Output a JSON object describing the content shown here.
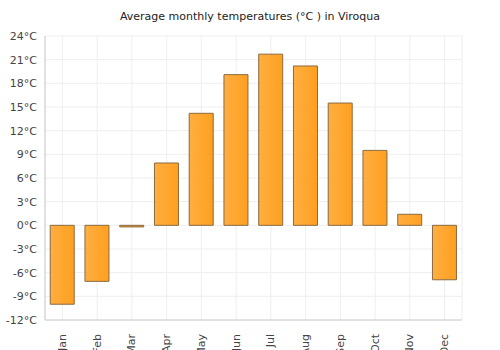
{
  "chart_data": {
    "type": "bar",
    "title": "Average monthly temperatures (°C ) in Viroqua",
    "categories": [
      "Jan",
      "Feb",
      "Mar",
      "Apr",
      "May",
      "Jun",
      "Jul",
      "Aug",
      "Sep",
      "Oct",
      "Nov",
      "Dec"
    ],
    "values": [
      -10.0,
      -7.1,
      -0.2,
      7.9,
      14.2,
      19.1,
      21.7,
      20.2,
      15.5,
      9.5,
      1.4,
      -6.9
    ],
    "color": "#ffa020",
    "ylim": [
      -12,
      24
    ],
    "yticks": [
      {
        "value": -12,
        "label": "-12°C"
      },
      {
        "value": -9,
        "label": "-9°C"
      },
      {
        "value": -6,
        "label": "-6°C"
      },
      {
        "value": -3,
        "label": "-3°C"
      },
      {
        "value": 0,
        "label": "0°C"
      },
      {
        "value": 3,
        "label": "3°C"
      },
      {
        "value": 6,
        "label": "6°C"
      },
      {
        "value": 9,
        "label": "9°C"
      },
      {
        "value": 12,
        "label": "12°C"
      },
      {
        "value": 15,
        "label": "15°C"
      },
      {
        "value": 18,
        "label": "18°C"
      },
      {
        "value": 21,
        "label": "21°C"
      },
      {
        "value": 24,
        "label": "24°C"
      }
    ],
    "grid": true
  }
}
